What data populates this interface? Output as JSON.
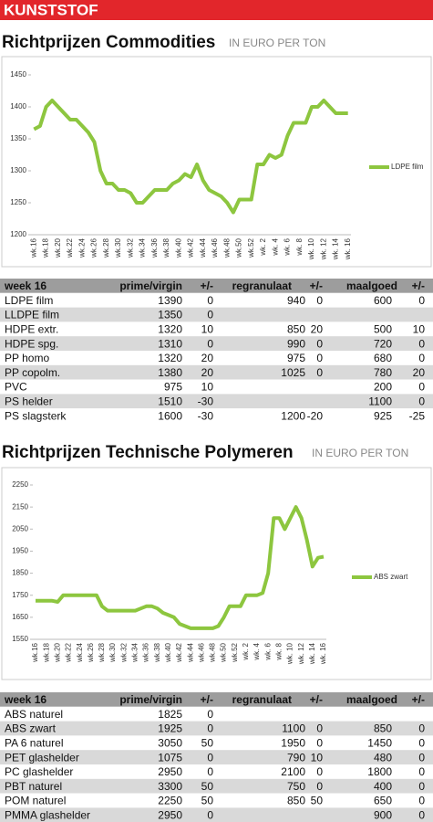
{
  "header": {
    "title": "KUNSTSTOF"
  },
  "sections": [
    {
      "title": "Richtprijzen Commodities",
      "subtitle": "IN EURO PER TON"
    },
    {
      "title": "Richtprijzen Technische Polymeren",
      "subtitle": "IN EURO PER TON"
    }
  ],
  "chart_data": [
    {
      "type": "line",
      "categories": [
        "wk.16",
        null,
        "wk.18",
        null,
        "wk.20",
        null,
        "wk.22",
        null,
        "wk.24",
        null,
        "wk.26",
        null,
        "wk.28",
        null,
        "wk.30",
        null,
        "wk.32",
        null,
        "wk.34",
        null,
        "wk.36",
        null,
        "wk.38",
        null,
        "wk.40",
        null,
        "wk.42",
        null,
        "wk.44",
        null,
        "wk.46",
        null,
        "wk.48",
        null,
        "wk.50",
        null,
        "wk.52",
        null,
        "wk. 2",
        null,
        "wk. 4",
        null,
        "wk. 6",
        null,
        "wk. 8",
        null,
        "wk. 10",
        null,
        "wk. 12",
        null,
        "wk. 14",
        null,
        "wk. 16"
      ],
      "series": [
        {
          "name": "LDPE film",
          "color": "#8dc63f",
          "values": [
            1365,
            1370,
            1400,
            1410,
            1400,
            1390,
            1380,
            1380,
            1370,
            1360,
            1345,
            1300,
            1280,
            1280,
            1270,
            1270,
            1265,
            1250,
            1250,
            1260,
            1270,
            1270,
            1270,
            1280,
            1285,
            1295,
            1290,
            1310,
            1285,
            1270,
            1265,
            1260,
            1250,
            1235,
            1255,
            1255,
            1255,
            1310,
            1310,
            1325,
            1320,
            1325,
            1355,
            1375,
            1375,
            1375,
            1400,
            1400,
            1410,
            1400,
            1390,
            1390,
            1390
          ]
        }
      ],
      "ylim": [
        1200,
        1450
      ],
      "yticks": [
        1200,
        1250,
        1300,
        1350,
        1400,
        1450
      ],
      "legend": "right"
    },
    {
      "type": "line",
      "categories": [
        "wk.16",
        null,
        "wk.18",
        null,
        "wk.20",
        null,
        "wk.22",
        null,
        "wk.24",
        null,
        "wk.26",
        null,
        "wk.28",
        null,
        "wk.30",
        null,
        "wk.32",
        null,
        "wk.34",
        null,
        "wk.36",
        null,
        "wk.38",
        null,
        "wk.40",
        null,
        "wk.42",
        null,
        "wk.44",
        null,
        "wk.46",
        null,
        "wk.48",
        null,
        "wk.50",
        null,
        "wk.52",
        null,
        "wk. 2",
        null,
        "wk. 4",
        null,
        "wk. 6",
        null,
        "wk. 8",
        null,
        "wk. 10",
        null,
        "wk. 12",
        null,
        "wk. 14",
        null,
        "wk. 16"
      ],
      "series": [
        {
          "name": "ABS zwart",
          "color": "#8dc63f",
          "values": [
            1725,
            1725,
            1725,
            1725,
            1720,
            1750,
            1750,
            1750,
            1750,
            1750,
            1750,
            1750,
            1700,
            1680,
            1680,
            1680,
            1680,
            1680,
            1680,
            1690,
            1700,
            1700,
            1690,
            1670,
            1660,
            1650,
            1620,
            1610,
            1600,
            1600,
            1600,
            1600,
            1600,
            1610,
            1650,
            1700,
            1700,
            1700,
            1750,
            1750,
            1750,
            1760,
            1850,
            2100,
            2100,
            2050,
            2100,
            2150,
            2100,
            2000,
            1880,
            1920,
            1925
          ]
        }
      ],
      "ylim": [
        1550,
        2250
      ],
      "yticks": [
        1550,
        1650,
        1750,
        1850,
        1950,
        2050,
        2150,
        2250
      ],
      "legend": "right"
    }
  ],
  "tables": [
    {
      "columns": [
        "week 16",
        "prime/virgin",
        "+/-",
        "regranulaat",
        "+/-",
        "maalgoed",
        "+/-"
      ],
      "rows": [
        [
          "LDPE film",
          1390,
          0,
          940,
          0,
          600,
          0
        ],
        [
          "LLDPE film",
          1350,
          0,
          null,
          null,
          null,
          null
        ],
        [
          "HDPE extr.",
          1320,
          10,
          850,
          20,
          500,
          10
        ],
        [
          "HDPE spg.",
          1310,
          0,
          990,
          0,
          720,
          0
        ],
        [
          "PP homo",
          1320,
          20,
          975,
          0,
          680,
          0
        ],
        [
          "PP copolm.",
          1380,
          20,
          1025,
          0,
          780,
          20
        ],
        [
          "PVC",
          975,
          10,
          null,
          null,
          200,
          0
        ],
        [
          "PS helder",
          1510,
          -30,
          null,
          null,
          1100,
          0
        ],
        [
          "PS slagsterk",
          1600,
          -30,
          1200,
          -20,
          925,
          -25
        ]
      ]
    },
    {
      "columns": [
        "week 16",
        "prime/virgin",
        "+/-",
        "regranulaat",
        "+/-",
        "maalgoed",
        "+/-"
      ],
      "rows": [
        [
          "ABS naturel",
          1825,
          0,
          null,
          null,
          null,
          null
        ],
        [
          "ABS zwart",
          1925,
          0,
          1100,
          0,
          850,
          0
        ],
        [
          "PA 6 naturel",
          3050,
          50,
          1950,
          0,
          1450,
          0
        ],
        [
          "PET glashelder",
          1075,
          0,
          790,
          10,
          480,
          0
        ],
        [
          "PC glashelder",
          2950,
          0,
          2100,
          0,
          1800,
          0
        ],
        [
          "PBT naturel",
          3300,
          50,
          750,
          0,
          400,
          0
        ],
        [
          "POM naturel",
          2250,
          50,
          850,
          50,
          650,
          0
        ],
        [
          "PMMA glashelder",
          2950,
          0,
          null,
          null,
          900,
          0
        ]
      ]
    }
  ]
}
